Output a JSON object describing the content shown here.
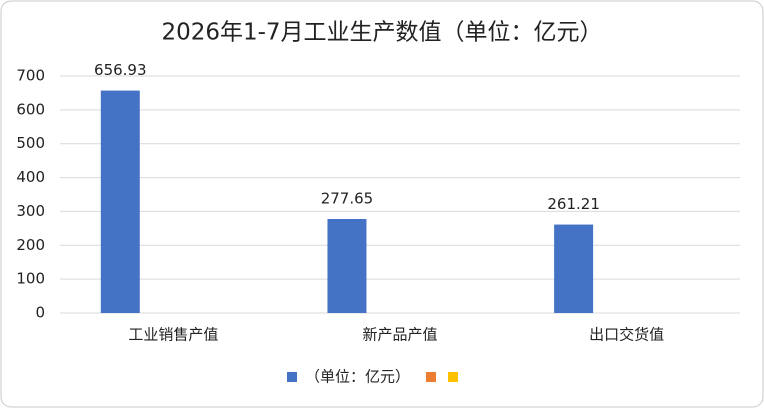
{
  "chart_data": {
    "type": "bar",
    "title": "2026年1-7月工业生产数值（单位：亿元）",
    "categories": [
      "工业销售产值",
      "新产品产值",
      "出口交货值"
    ],
    "series": [
      {
        "name": "（单位：亿元）",
        "color": "#4472c4",
        "values": [
          656.93,
          277.65,
          261.21
        ]
      },
      {
        "color": "#ed7d31",
        "values": [
          null,
          null,
          null
        ]
      },
      {
        "color": "#ffc000",
        "values": [
          null,
          null,
          null
        ]
      }
    ],
    "ylim": [
      0,
      700
    ],
    "yticks": [
      0,
      100,
      200,
      300,
      400,
      500,
      600,
      700
    ],
    "grid": true,
    "legend": "bottom"
  }
}
